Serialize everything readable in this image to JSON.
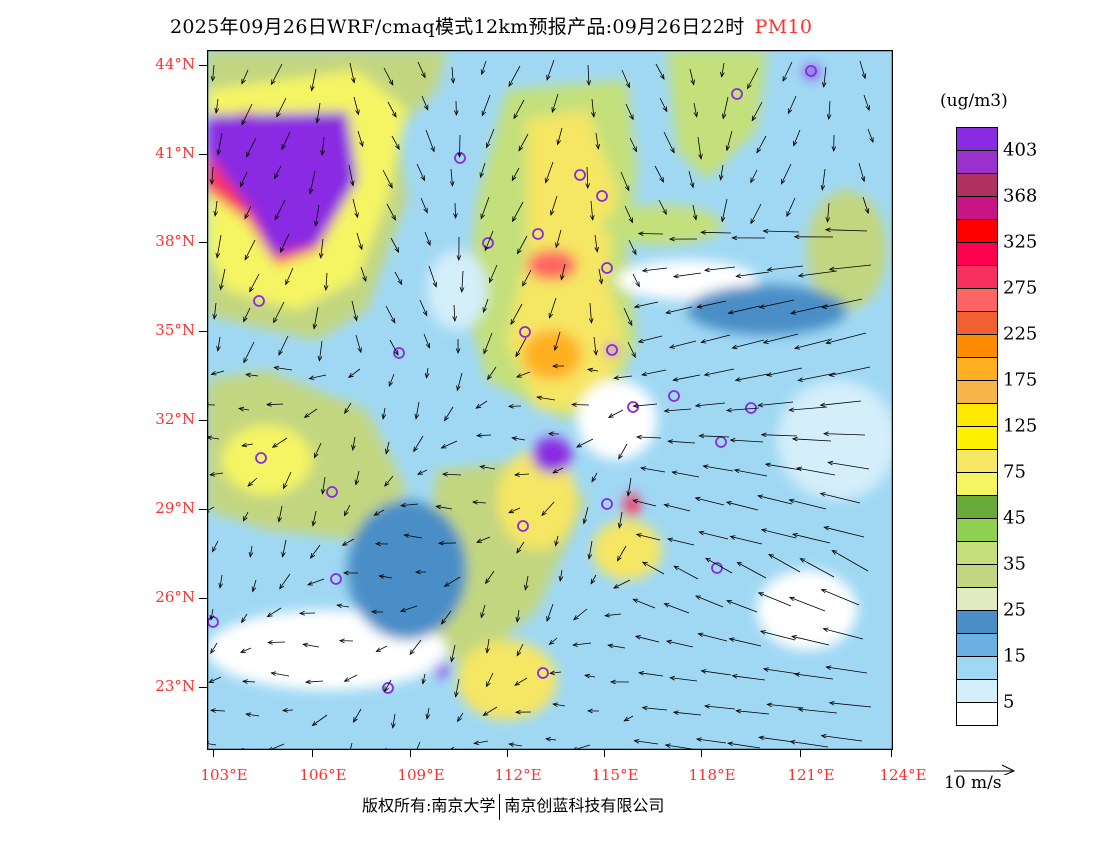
{
  "title": {
    "text": "2025年09月26日WRF/cmaq模式12km预报产品:09月26日22时",
    "pollutant": "PM10"
  },
  "map": {
    "lat_labels": [
      "44°N",
      "41°N",
      "38°N",
      "35°N",
      "32°N",
      "29°N",
      "26°N",
      "23°N"
    ],
    "lon_labels": [
      "103°E",
      "106°E",
      "109°E",
      "112°E",
      "115°E",
      "118°E",
      "121°E",
      "124°E"
    ]
  },
  "legend": {
    "unit": "(ug/m3)",
    "colors": [
      "#8a2be2",
      "#9932cc",
      "#b03060",
      "#c71585",
      "#ff0000",
      "#ff0050",
      "#f83060",
      "#ff6464",
      "#f06030",
      "#ff8c00",
      "#ffb020",
      "#f5b54a",
      "#ffe800",
      "#fff000",
      "#f5e664",
      "#f5f564",
      "#6aaa3a",
      "#90d050",
      "#c4e07a",
      "#c2d680",
      "#e0ecc0",
      "#4a8ec6",
      "#6ab0e0",
      "#a0d8f4",
      "#d4eefa",
      "#ffffff"
    ],
    "labels": [
      "403",
      "368",
      "325",
      "275",
      "225",
      "175",
      "125",
      "75",
      "45",
      "35",
      "25",
      "15",
      "5"
    ],
    "wind_reference": "10 m/s"
  },
  "footer": {
    "left": "版权所有:南京大学",
    "right": "南京创蓝科技有限公司"
  }
}
